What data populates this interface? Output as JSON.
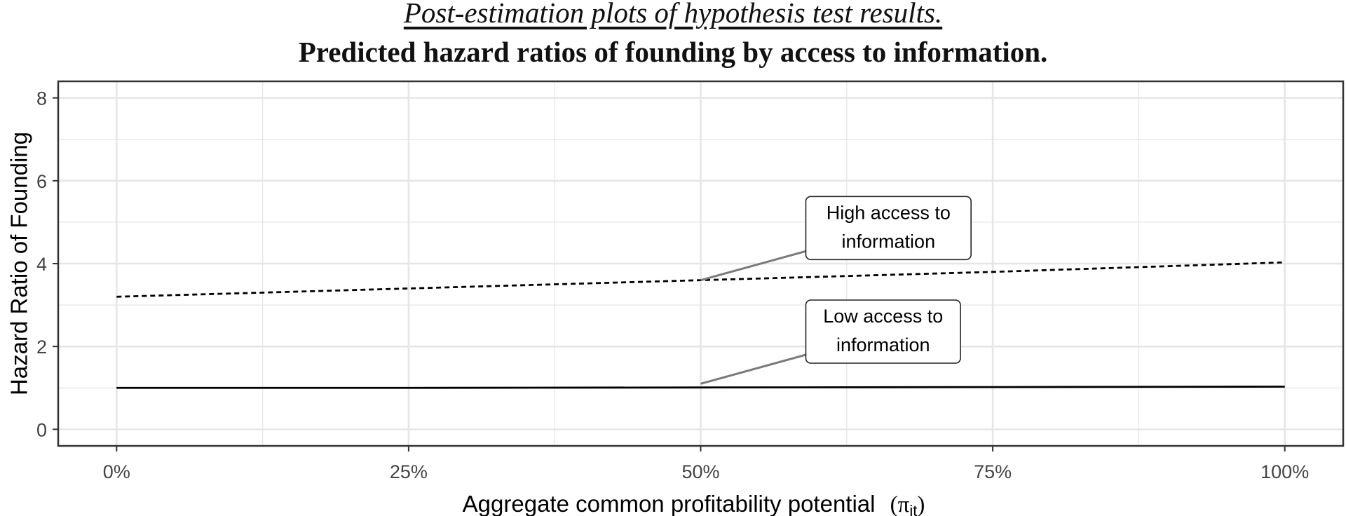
{
  "chart_data": {
    "type": "line",
    "title": "Post-estimation plots of hypothesis test results.",
    "subtitle": "Predicted hazard ratios of founding by access to information.",
    "xlabel_text": "Aggregate common profitability potential",
    "xlabel_symbol": "π",
    "xlabel_subscript": "it",
    "ylabel": "Hazard Ratio of Founding",
    "x": [
      0,
      25,
      50,
      75,
      100
    ],
    "xticks": [
      0,
      25,
      50,
      75,
      100
    ],
    "xtick_labels": [
      "0%",
      "25%",
      "50%",
      "75%",
      "100%"
    ],
    "yticks": [
      0,
      2,
      4,
      6,
      8
    ],
    "ytick_labels": [
      "0",
      "2",
      "4",
      "6",
      "8"
    ],
    "xlim": [
      -5,
      105
    ],
    "ylim": [
      -0.4,
      8.4
    ],
    "grid": true,
    "series": [
      {
        "name": "High access to information",
        "style": "dashed",
        "values": [
          3.2,
          3.4,
          3.6,
          3.8,
          4.03
        ]
      },
      {
        "name": "Low access to information",
        "style": "solid",
        "values": [
          1.0,
          1.0,
          1.01,
          1.02,
          1.03
        ]
      }
    ],
    "annotations": [
      {
        "lines": [
          "High access to",
          "information"
        ],
        "point": [
          50,
          3.6
        ],
        "box_anchor": [
          59,
          4.3
        ]
      },
      {
        "lines": [
          "Low access to",
          "information"
        ],
        "point": [
          50,
          1.1
        ],
        "box_anchor": [
          59,
          1.8
        ]
      }
    ],
    "colors": {
      "line": "#000000",
      "leader": "#7a7a7a",
      "grid": "#e6e6e6",
      "frame": "#333333",
      "text": "#444444"
    }
  }
}
